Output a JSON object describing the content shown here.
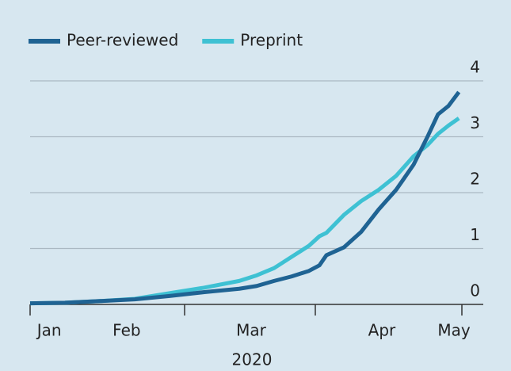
{
  "chart_data": {
    "type": "line",
    "x_label": "2020",
    "x": [
      0,
      10,
      20,
      30,
      40,
      50,
      60,
      65,
      70,
      75,
      80,
      83,
      85,
      90,
      95,
      100,
      105,
      110,
      114,
      117,
      120,
      123
    ],
    "series": [
      {
        "name": "Peer-reviewed",
        "color": "#1f6393",
        "values": [
          0.02,
          0.03,
          0.06,
          0.09,
          0.15,
          0.22,
          0.28,
          0.33,
          0.42,
          0.5,
          0.6,
          0.7,
          0.88,
          1.02,
          1.3,
          1.7,
          2.05,
          2.5,
          3.0,
          3.4,
          3.55,
          3.8
        ]
      },
      {
        "name": "Preprint",
        "color": "#3ec1d3",
        "values": [
          0.02,
          0.03,
          0.06,
          0.1,
          0.2,
          0.3,
          0.42,
          0.52,
          0.65,
          0.85,
          1.05,
          1.22,
          1.28,
          1.6,
          1.85,
          2.05,
          2.3,
          2.65,
          2.85,
          3.05,
          3.2,
          3.33
        ]
      }
    ],
    "xlim": [
      0,
      130
    ],
    "xticks": [
      {
        "value": 5.5,
        "label": "Jan"
      },
      {
        "value": 27.7,
        "label": "Feb"
      },
      {
        "value": 63.4,
        "label": "Mar"
      },
      {
        "value": 100.9,
        "label": "Apr"
      },
      {
        "value": 121.6,
        "label": "May"
      }
    ],
    "ylim": [
      0,
      4
    ],
    "yticks": [
      0,
      1,
      2,
      3,
      4
    ],
    "grid": true,
    "legend": "top-left"
  }
}
